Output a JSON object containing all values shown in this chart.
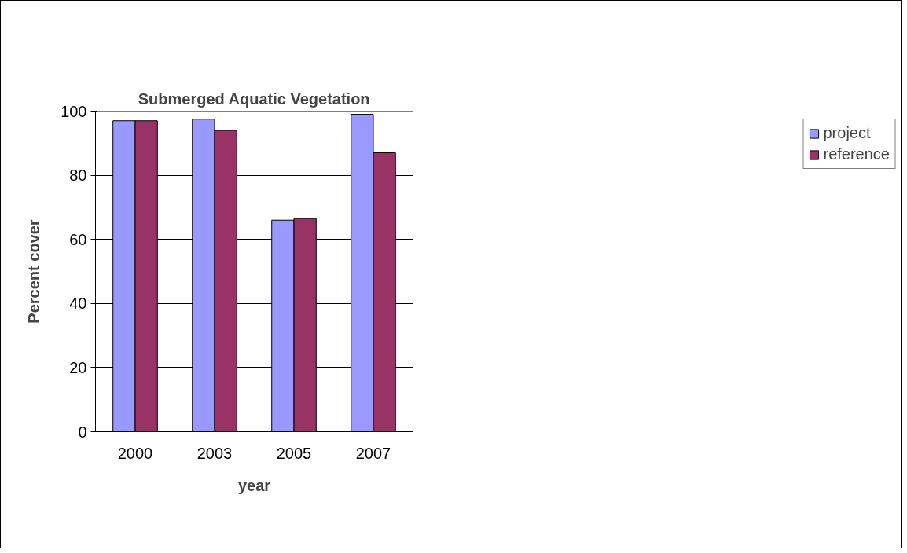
{
  "chart_data": {
    "type": "bar",
    "title": "Submerged Aquatic Vegetation",
    "xlabel": "year",
    "ylabel": "Percent cover",
    "categories": [
      "2000",
      "2003",
      "2005",
      "2007"
    ],
    "series": [
      {
        "name": "project",
        "color": "#9999ff",
        "values": [
          97,
          97.5,
          66,
          99
        ]
      },
      {
        "name": "reference",
        "color": "#993366",
        "values": [
          97,
          94,
          66.5,
          87
        ]
      }
    ],
    "ylim": [
      0,
      100
    ],
    "yticks": [
      0,
      20,
      40,
      60,
      80,
      100
    ],
    "grid": "y",
    "legend": "right"
  }
}
